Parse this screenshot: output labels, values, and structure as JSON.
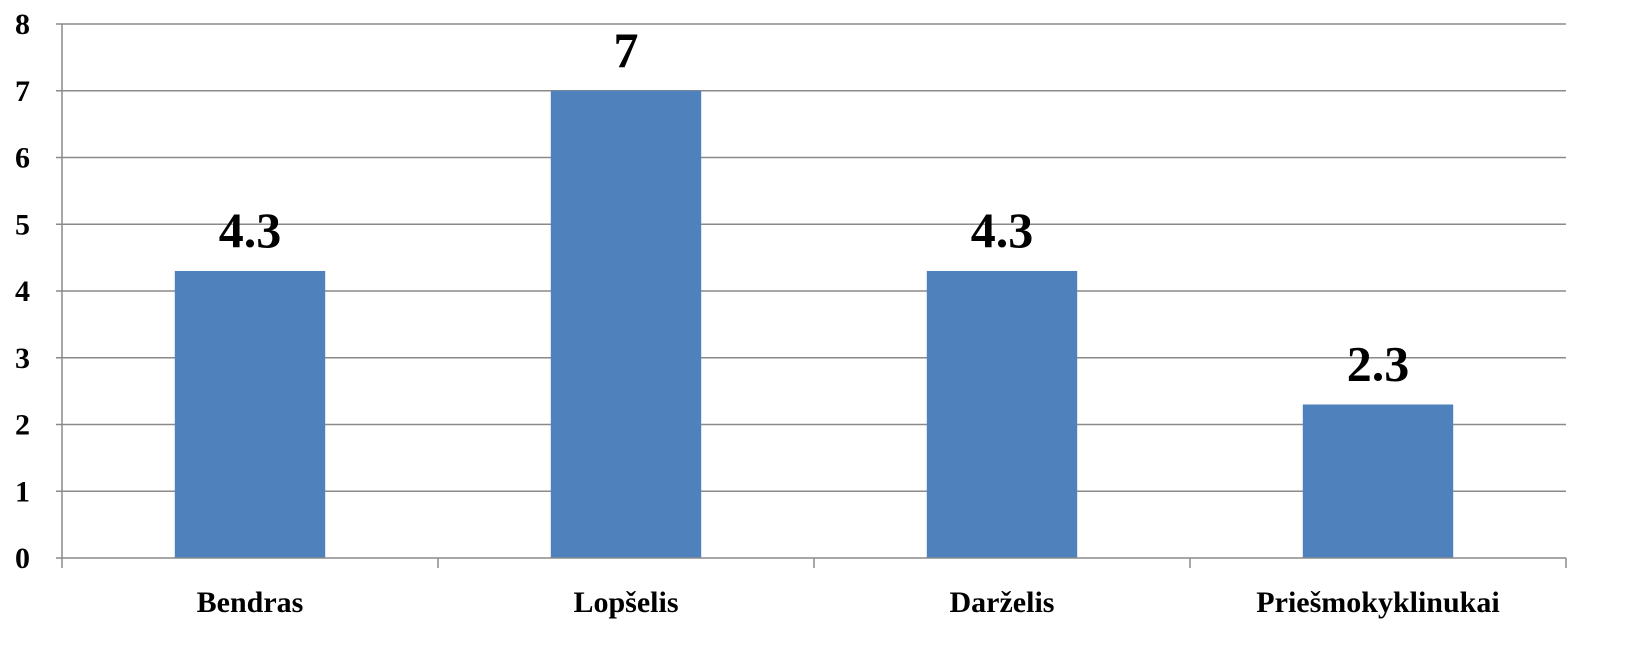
{
  "chart_data": {
    "type": "bar",
    "categories": [
      "Bendras",
      "Lopšelis",
      "Darželis",
      "Priešmokyklinukai"
    ],
    "values": [
      4.3,
      7,
      4.3,
      2.3
    ],
    "data_labels": [
      "4.3",
      "7",
      "4.3",
      "2.3"
    ],
    "title": "",
    "xlabel": "",
    "ylabel": "",
    "ylim": [
      0,
      8
    ],
    "yticks": [
      "0",
      "1",
      "2",
      "3",
      "4",
      "5",
      "6",
      "7",
      "8"
    ],
    "grid": true,
    "legend": "none",
    "bar_color": "#4f81bd"
  }
}
